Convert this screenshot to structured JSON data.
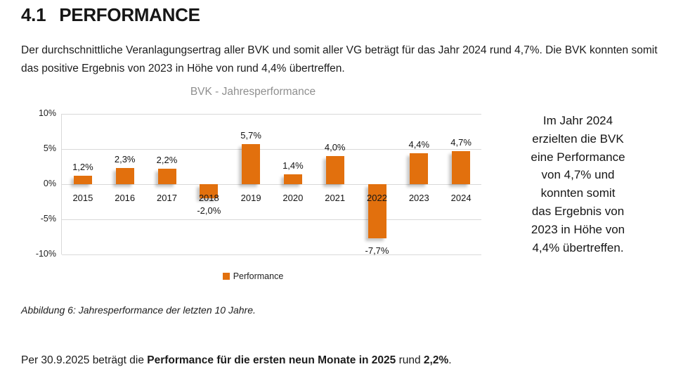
{
  "page": {
    "heading_number": "4.1",
    "heading_title": "PERFORMANCE",
    "intro_paragraph": "Der durchschnittliche Veranlagungsertrag aller BVK und somit aller VG beträgt für das Jahr 2024 rund 4,7%. Die BVK konnten somit das positive Ergebnis von 2023 in Höhe von rund 4,4% übertreffen.",
    "side_text_lines": [
      "Im Jahr 2024",
      "erzielten die BVK",
      "eine Performance",
      "von 4,7% und",
      "konnten somit",
      "das Ergebnis von",
      "2023 in Höhe von",
      "4,4% übertreffen."
    ],
    "caption": "Abbildung 6: Jahresperformance der letzten 10 Jahre.",
    "footer": {
      "prefix": "Per 30.9.2025 beträgt die ",
      "bold1": "Performance für die ersten neun Monate in 2025",
      "middle": " rund ",
      "bold2": "2,2%",
      "suffix": "."
    }
  },
  "chart_data": {
    "type": "bar",
    "title": "BVK - Jahresperformance",
    "categories": [
      "2015",
      "2016",
      "2017",
      "2018",
      "2019",
      "2020",
      "2021",
      "2022",
      "2023",
      "2024"
    ],
    "values": [
      1.2,
      2.3,
      2.2,
      -2.0,
      5.7,
      1.4,
      4.0,
      -7.7,
      4.4,
      4.7
    ],
    "value_labels": [
      "1,2%",
      "2,3%",
      "2,2%",
      "-2,0%",
      "5,7%",
      "1,4%",
      "4,0%",
      "-7,7%",
      "4,4%",
      "4,7%"
    ],
    "y_ticks": [
      "10%",
      "5%",
      "0%",
      "-5%",
      "-10%"
    ],
    "ylim": [
      -10,
      10
    ],
    "grid": true,
    "legend": [
      "Performance"
    ],
    "legend_position": "bottom",
    "bar_color": "#E2700D",
    "gridline_color": "#d9d9d9",
    "title_color": "#8f8f8f"
  }
}
